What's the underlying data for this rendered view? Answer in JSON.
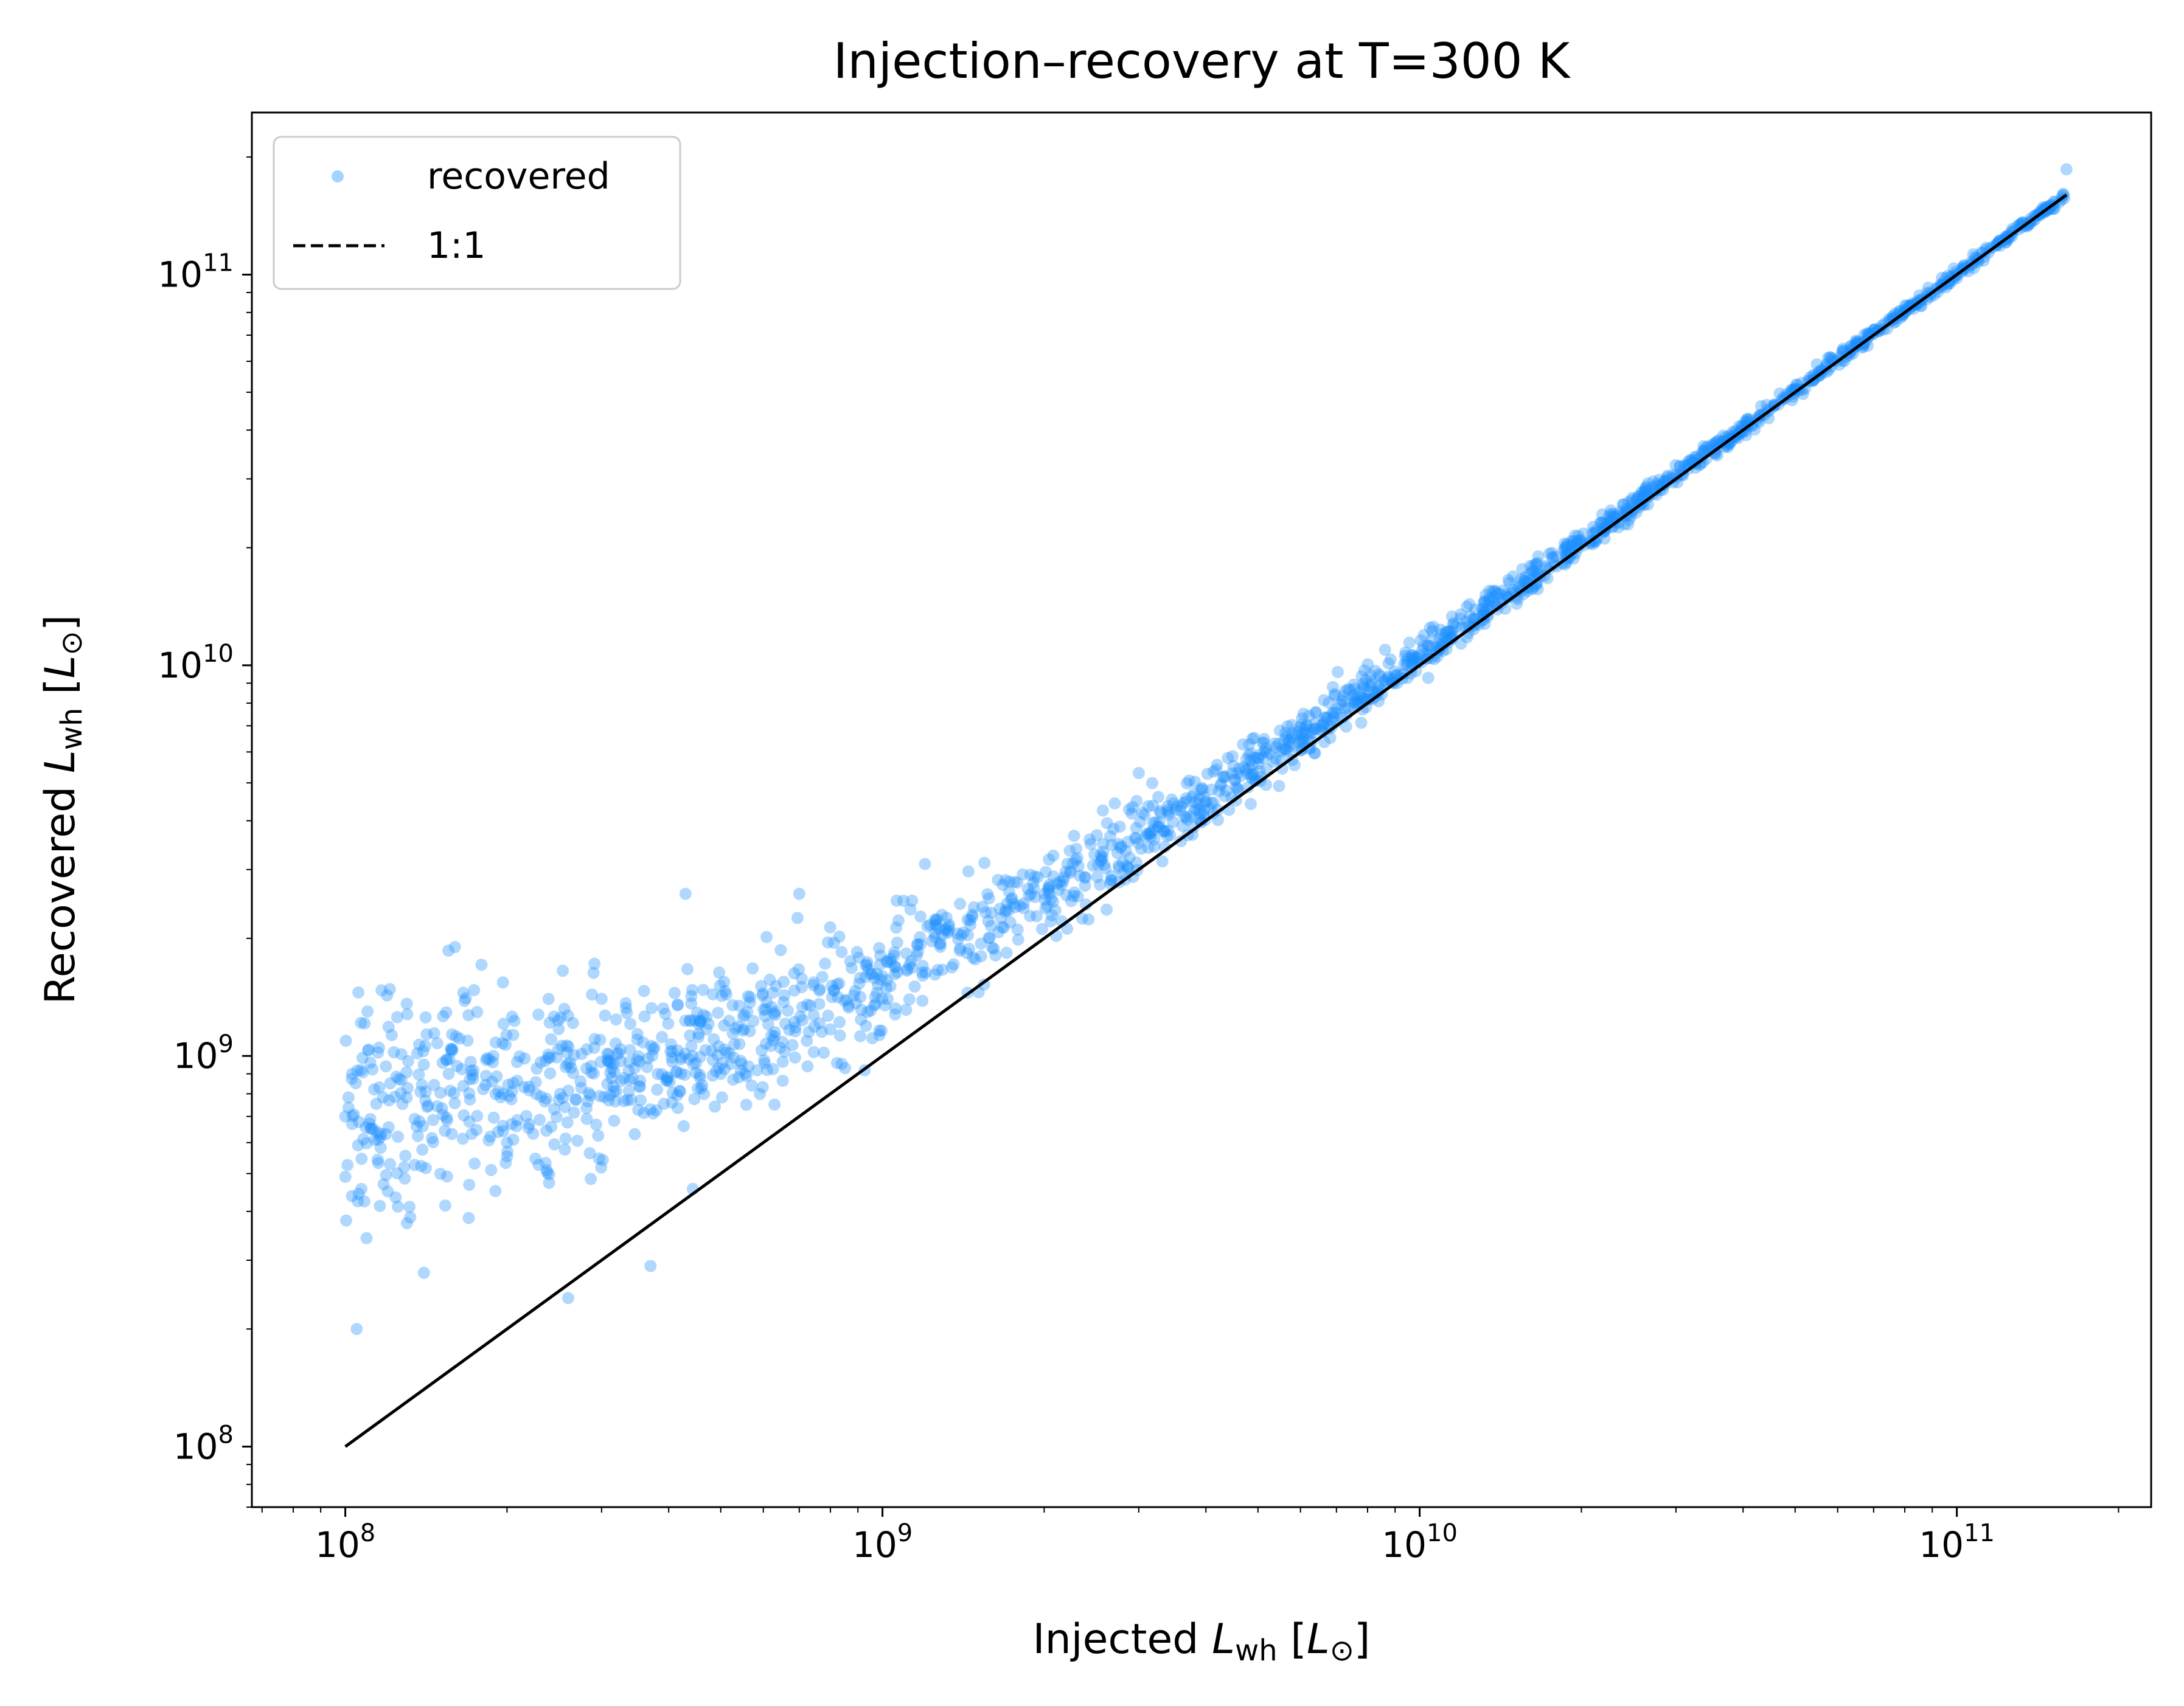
{
  "chart_data": {
    "type": "scatter",
    "title": "Injection–recovery at T=300 K",
    "xlabel": {
      "prefix": "Injected ",
      "symbol": "L",
      "sub": "wh",
      "unit_open": " [",
      "unit_symbol": "L",
      "unit_sub": "⊙",
      "unit_close": "]"
    },
    "ylabel": {
      "prefix": "Recovered ",
      "symbol": "L",
      "sub": "wh",
      "unit_open": " [",
      "unit_symbol": "L",
      "unit_sub": "⊙",
      "unit_close": "]"
    },
    "xscale": "log",
    "yscale": "log",
    "xlim": [
      67000000.0,
      230000000000.0
    ],
    "ylim": [
      70000000.0,
      260000000000.0
    ],
    "grid": false,
    "xticks": [
      {
        "base": "10",
        "exp": "8",
        "value": 100000000.0
      },
      {
        "base": "10",
        "exp": "9",
        "value": 1000000000.0
      },
      {
        "base": "10",
        "exp": "10",
        "value": 10000000000.0
      },
      {
        "base": "10",
        "exp": "11",
        "value": 100000000000.0
      }
    ],
    "yticks": [
      {
        "base": "10",
        "exp": "8",
        "value": 100000000.0
      },
      {
        "base": "10",
        "exp": "9",
        "value": 1000000000.0
      },
      {
        "base": "10",
        "exp": "10",
        "value": 10000000000.0
      },
      {
        "base": "10",
        "exp": "11",
        "value": 100000000000.0
      }
    ],
    "legend": {
      "placement": "top-left",
      "entries": [
        {
          "label": "recovered",
          "marker": "dot",
          "color": "#1e90ff"
        },
        {
          "label": "1:1",
          "marker": "dashed-line",
          "color": "#000000"
        }
      ]
    },
    "series": [
      {
        "name": "recovered",
        "kind": "points",
        "color": "#1e90ff",
        "alpha": 0.35,
        "n_points": 2000,
        "x_range": [
          100000000.0,
          160000000000.0
        ],
        "trend": "recovered ≈ injected + 6e8 (scatter ~0.25 dex at low injected, ~0.02 dex at high)",
        "points_sample": [
          [
            100000000.0,
            700000000.0
          ],
          [
            105000000.0,
            200000000.0
          ],
          [
            110000000.0,
            1300000000.0
          ],
          [
            120000000.0,
            450000000.0
          ],
          [
            140000000.0,
            950000000.0
          ],
          [
            160000000.0,
            1900000000.0
          ],
          [
            200000000.0,
            600000000.0
          ],
          [
            260000000.0,
            240000000.0
          ],
          [
            300000000.0,
            1400000000.0
          ],
          [
            370000000.0,
            290000000.0
          ],
          [
            430000000.0,
            2600000000.0
          ],
          [
            500000000.0,
            900000000.0
          ],
          [
            700000000.0,
            2600000000.0
          ],
          [
            1000000000.0,
            1600000000.0
          ],
          [
            1200000000.0,
            3100000000.0
          ],
          [
            2000000000.0,
            2600000000.0
          ],
          [
            3000000000.0,
            5300000000.0
          ],
          [
            5000000000.0,
            5600000000.0
          ],
          [
            10000000000.0,
            10600000000.0
          ],
          [
            20000000000.0,
            20600000000.0
          ],
          [
            50000000000.0,
            50600000000.0
          ],
          [
            100000000000.0,
            100600000000.0
          ],
          [
            160000000000.0,
            186000000000.0
          ]
        ]
      },
      {
        "name": "1:1",
        "kind": "line",
        "color": "#000000",
        "x": [
          100000000.0,
          160000000000.0
        ],
        "y": [
          100000000.0,
          160000000000.0
        ]
      }
    ]
  }
}
